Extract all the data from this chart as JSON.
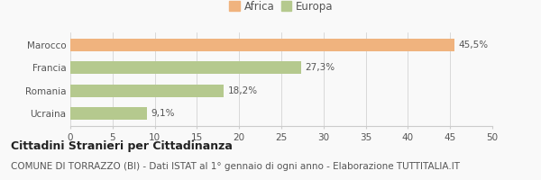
{
  "categories": [
    "Marocco",
    "Francia",
    "Romania",
    "Ucraina"
  ],
  "values": [
    45.5,
    27.3,
    18.2,
    9.1
  ],
  "labels": [
    "45,5%",
    "27,3%",
    "18,2%",
    "9,1%"
  ],
  "colors": [
    "#f0b37e",
    "#b5c98e",
    "#b5c98e",
    "#b5c98e"
  ],
  "legend": [
    {
      "label": "Africa",
      "color": "#f0b37e"
    },
    {
      "label": "Europa",
      "color": "#b5c98e"
    }
  ],
  "xlim": [
    0,
    50
  ],
  "xticks": [
    0,
    5,
    10,
    15,
    20,
    25,
    30,
    35,
    40,
    45,
    50
  ],
  "title": "Cittadini Stranieri per Cittadinanza",
  "subtitle": "COMUNE DI TORRAZZO (BI) - Dati ISTAT al 1° gennaio di ogni anno - Elaborazione TUTTITALIA.IT",
  "background_color": "#f9f9f9",
  "bar_height": 0.55,
  "title_fontsize": 9,
  "subtitle_fontsize": 7.5,
  "label_fontsize": 7.5,
  "tick_fontsize": 7.5,
  "ytick_fontsize": 7.5,
  "legend_fontsize": 8.5
}
